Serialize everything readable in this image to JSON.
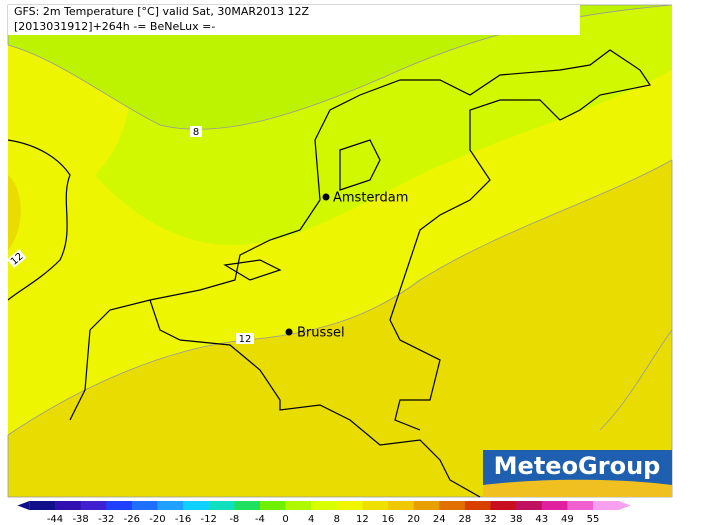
{
  "header": {
    "line1": "GFS: 2m Temperature [°C] valid Sat, 30MAR2013 12Z",
    "line2": "[2013031912]+264h -= BeNeLux =-"
  },
  "cities": [
    {
      "label": "Amsterdam"
    },
    {
      "label": "Brussel"
    }
  ],
  "contours": [
    {
      "label": "8"
    },
    {
      "label": "12"
    },
    {
      "label": "12"
    }
  ],
  "logo": "MeteoGroup",
  "colorbar": {
    "ticks": [
      -44,
      -38,
      -32,
      -26,
      -20,
      -16,
      -12,
      -8,
      -4,
      0,
      4,
      8,
      12,
      16,
      20,
      24,
      28,
      32,
      38,
      43,
      49,
      55
    ]
  }
}
